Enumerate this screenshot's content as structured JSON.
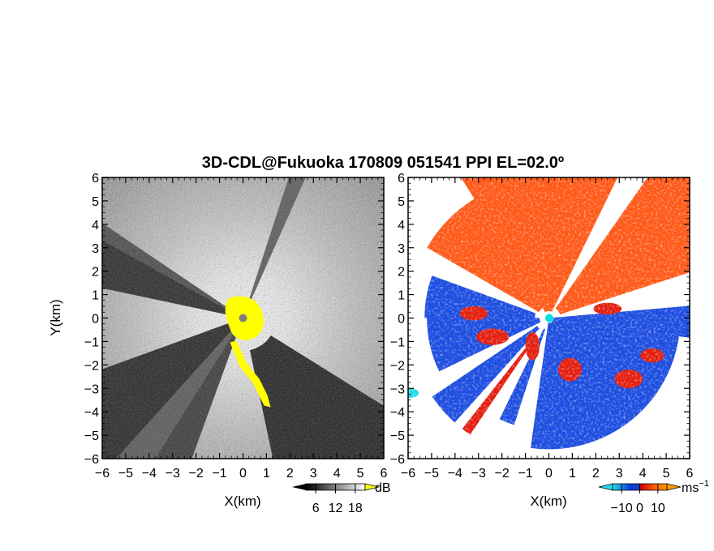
{
  "title": "3D-CDL@Fukuoka 170809 051541 PPI EL=02.0º",
  "chart_data": [
    {
      "type": "heatmap",
      "name": "reflectivity",
      "xlabel": "X(km)",
      "ylabel": "Y(km)",
      "xlim": [
        -6,
        6
      ],
      "ylim": [
        -6,
        6
      ],
      "xticks": [
        "−6",
        "−5",
        "−4",
        "−3",
        "−2",
        "−1",
        "0",
        "1",
        "2",
        "3",
        "4",
        "5",
        "6"
      ],
      "yticks": [
        "6",
        "5",
        "4",
        "3",
        "2",
        "1",
        "0",
        "−1",
        "−2",
        "−3",
        "−4",
        "−5",
        "−6"
      ],
      "colorbar": {
        "unit": "dB",
        "ticks": [
          "6",
          "12",
          "18"
        ],
        "range": [
          3,
          21
        ],
        "colors": [
          "#000000",
          "#ffffff"
        ],
        "over_color": "#ffff00"
      },
      "site_marker_color": "#808080",
      "dark_sectors_deg": [
        [
          -60,
          -38
        ],
        [
          -48,
          -34
        ],
        [
          -26,
          -18
        ],
        [
          -17,
          -14
        ],
        [
          155,
          168
        ],
        [
          122,
          145
        ]
      ],
      "yellow_region": "near-site echo and strip along -60° to -80° bearing"
    },
    {
      "type": "heatmap",
      "name": "doppler-velocity",
      "xlabel": "X(km)",
      "xlim": [
        -6,
        6
      ],
      "ylim": [
        -6,
        6
      ],
      "xticks": [
        "−6",
        "−5",
        "−4",
        "−3",
        "−2",
        "−1",
        "0",
        "1",
        "2",
        "3",
        "4",
        "5",
        "6"
      ],
      "yticks": [
        "6",
        "5",
        "4",
        "3",
        "2",
        "1",
        "0",
        "−1",
        "−2",
        "−3",
        "−4",
        "−5",
        "−6"
      ],
      "colorbar": {
        "unit": "ms",
        "unit_exp": "−1",
        "ticks": [
          "−10",
          "0",
          "10"
        ],
        "range": [
          -15,
          15
        ],
        "colors": [
          "#00ddee",
          "#0033dd",
          "#dd0000",
          "#ff6600",
          "#ff9900"
        ]
      },
      "site_marker_color": "#00e0e0",
      "colors": {
        "approaching": "#1f4fe0",
        "receding": "#ff5a1a",
        "receding_strong": "#e32010"
      }
    }
  ]
}
